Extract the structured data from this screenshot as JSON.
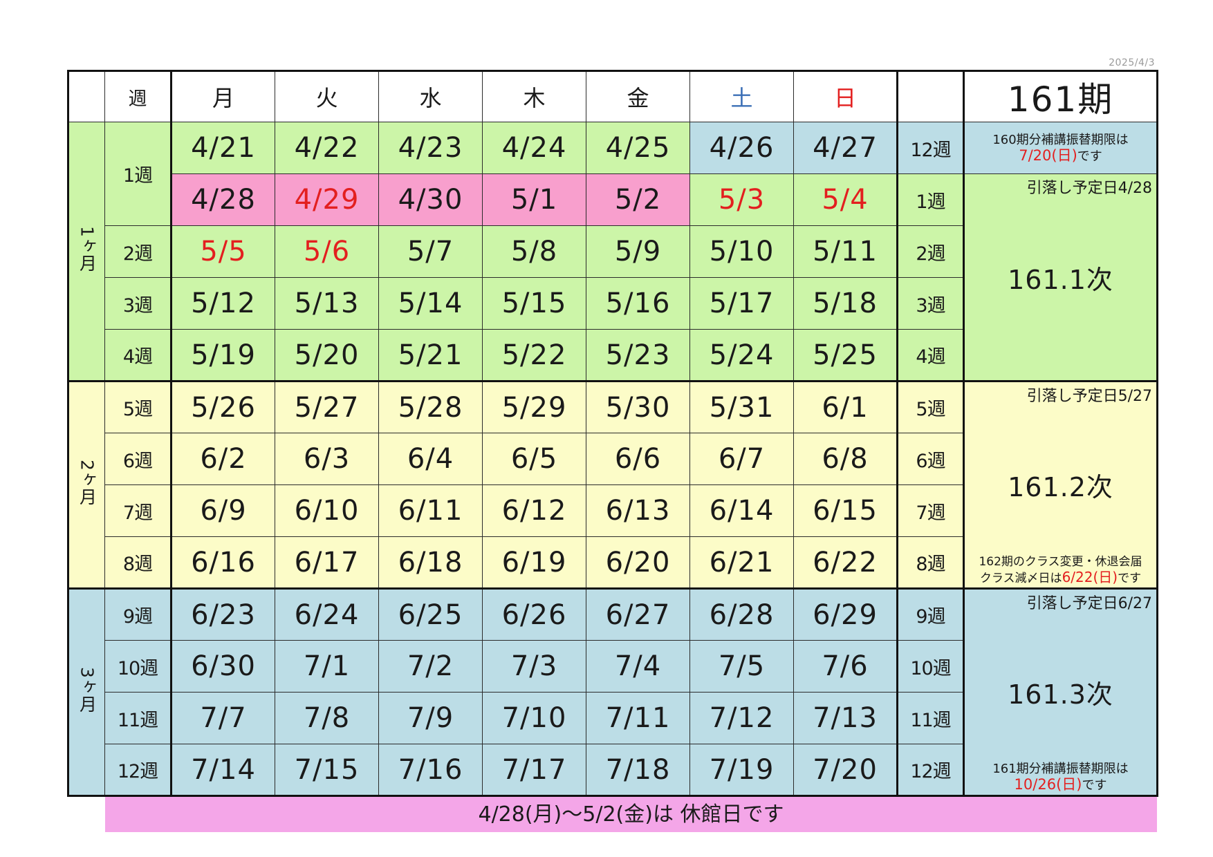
{
  "date_stamp": "2025/4/3",
  "header": {
    "week": "週",
    "days": [
      "月",
      "火",
      "水",
      "木",
      "金",
      "土",
      "日"
    ],
    "term": "161期"
  },
  "months": [
    "1ヶ月",
    "2ヶ月",
    "3ヶ月"
  ],
  "rows": [
    {
      "week_left": "1週",
      "dates": [
        "4/21",
        "4/22",
        "4/23",
        "4/24",
        "4/25",
        "4/26",
        "4/27"
      ],
      "week_right": "12週"
    },
    {
      "week_left": "",
      "dates": [
        "4/28",
        "4/29",
        "4/30",
        "5/1",
        "5/2",
        "5/3",
        "5/4"
      ],
      "week_right": "1週"
    },
    {
      "week_left": "2週",
      "dates": [
        "5/5",
        "5/6",
        "5/7",
        "5/8",
        "5/9",
        "5/10",
        "5/11"
      ],
      "week_right": "2週"
    },
    {
      "week_left": "3週",
      "dates": [
        "5/12",
        "5/13",
        "5/14",
        "5/15",
        "5/16",
        "5/17",
        "5/18"
      ],
      "week_right": "3週"
    },
    {
      "week_left": "4週",
      "dates": [
        "5/19",
        "5/20",
        "5/21",
        "5/22",
        "5/23",
        "5/24",
        "5/25"
      ],
      "week_right": "4週"
    },
    {
      "week_left": "5週",
      "dates": [
        "5/26",
        "5/27",
        "5/28",
        "5/29",
        "5/30",
        "5/31",
        "6/1"
      ],
      "week_right": "5週"
    },
    {
      "week_left": "6週",
      "dates": [
        "6/2",
        "6/3",
        "6/4",
        "6/5",
        "6/6",
        "6/7",
        "6/8"
      ],
      "week_right": "6週"
    },
    {
      "week_left": "7週",
      "dates": [
        "6/9",
        "6/10",
        "6/11",
        "6/12",
        "6/13",
        "6/14",
        "6/15"
      ],
      "week_right": "7週"
    },
    {
      "week_left": "8週",
      "dates": [
        "6/16",
        "6/17",
        "6/18",
        "6/19",
        "6/20",
        "6/21",
        "6/22"
      ],
      "week_right": "8週"
    },
    {
      "week_left": "9週",
      "dates": [
        "6/23",
        "6/24",
        "6/25",
        "6/26",
        "6/27",
        "6/28",
        "6/29"
      ],
      "week_right": "9週"
    },
    {
      "week_left": "10週",
      "dates": [
        "6/30",
        "7/1",
        "7/2",
        "7/3",
        "7/4",
        "7/5",
        "7/6"
      ],
      "week_right": "10週"
    },
    {
      "week_left": "11週",
      "dates": [
        "7/7",
        "7/8",
        "7/9",
        "7/10",
        "7/11",
        "7/12",
        "7/13"
      ],
      "week_right": "11週"
    },
    {
      "week_left": "12週",
      "dates": [
        "7/14",
        "7/15",
        "7/16",
        "7/17",
        "7/18",
        "7/19",
        "7/20"
      ],
      "week_right": "12週"
    }
  ],
  "info": {
    "note_160_line1": "160期分補講振替期限は",
    "note_160_date": "7/20(日)",
    "note_160_suffix": "です",
    "block1_debit": "引落し予定日4/28",
    "block1_label": "161.1次",
    "block2_debit": "引落し予定日5/27",
    "block2_label": "161.2次",
    "block2_note_line1": "162期のクラス変更・休退会届",
    "block2_note_line2_prefix": "クラス減〆日は",
    "block2_note_date": "6/22(日)",
    "block2_note_suffix": "です",
    "block3_debit": "引落し予定日6/27",
    "block3_label": "161.3次",
    "block3_note_line1": "161期分補講振替期限は",
    "block3_note_date": "10/26(日)",
    "block3_note_suffix": "です"
  },
  "banner": {
    "text": "4/28(月)～5/2(金)は 休館日です"
  },
  "colors": {
    "month1": "#ccf5a8",
    "month2": "#fcfcc8",
    "month3": "#bcdde6",
    "closed": "#f89fcd",
    "holiday_text": "#e31f1f",
    "saturday_text": "#3b6fb6",
    "banner": "#f4a6e8"
  }
}
